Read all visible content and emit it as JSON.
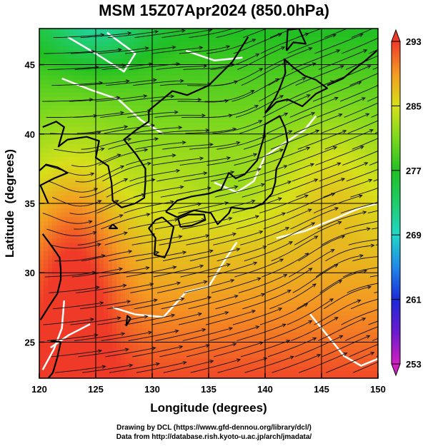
{
  "title": "MSM 15Z07Apr2024 (850.0hPa)",
  "chart_data": {
    "type": "heatmap",
    "title": "MSM 15Z07Apr2024 (850.0hPa)",
    "xlabel": "Longitude (degrees)",
    "ylabel": "Latitude  (degrees)",
    "xlim": [
      120,
      150
    ],
    "ylim": [
      22.4,
      47.6
    ],
    "x_ticks": [
      "120",
      "125",
      "130",
      "135",
      "140",
      "145",
      "150"
    ],
    "y_ticks": [
      "25",
      "30",
      "35",
      "40",
      "45"
    ],
    "grid": true,
    "overlays": [
      "temperature shading",
      "wind streamlines",
      "coastlines",
      "white contours"
    ],
    "colorbar": {
      "labels": [
        "293",
        "285",
        "277",
        "269",
        "261",
        "253"
      ],
      "range": [
        253,
        293
      ],
      "stops": [
        {
          "v": 253,
          "color": "#d020c0"
        },
        {
          "v": 257,
          "color": "#6a1ad0"
        },
        {
          "v": 261,
          "color": "#1a2ad8"
        },
        {
          "v": 265,
          "color": "#1f88e8"
        },
        {
          "v": 269,
          "color": "#22d6c8"
        },
        {
          "v": 273,
          "color": "#20cc6a"
        },
        {
          "v": 277,
          "color": "#22c022"
        },
        {
          "v": 281,
          "color": "#7cd81e"
        },
        {
          "v": 285,
          "color": "#d6e01a"
        },
        {
          "v": 289,
          "color": "#f49a22"
        },
        {
          "v": 293,
          "color": "#f03a28"
        }
      ]
    }
  },
  "credits": {
    "line1": "Drawing by DCL (https://www.gfd-dennou.org/library/dcl/)",
    "line2": "Data from http://database.rish.kyoto-u.ac.jp/arch/jmadata/"
  }
}
